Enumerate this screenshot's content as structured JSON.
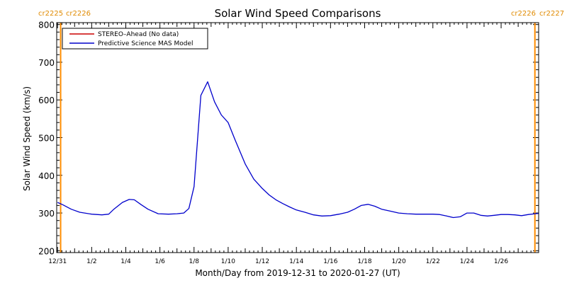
{
  "chart_data": {
    "type": "line",
    "title": "Solar Wind Speed Comparisons",
    "xlabel": "Month/Day from 2019-12-31 to 2020-01-27 (UT)",
    "ylabel": "Solar Wind Speed (km/s)",
    "xlim": [
      -0.05,
      28.2
    ],
    "ylim": [
      195,
      805
    ],
    "y_ticks": [
      200,
      300,
      400,
      500,
      600,
      700,
      800
    ],
    "x_ticks": [
      {
        "x": 0,
        "label": "12/31"
      },
      {
        "x": 2,
        "label": "1/2"
      },
      {
        "x": 4,
        "label": "1/4"
      },
      {
        "x": 6,
        "label": "1/6"
      },
      {
        "x": 8,
        "label": "1/8"
      },
      {
        "x": 10,
        "label": "1/10"
      },
      {
        "x": 12,
        "label": "1/12"
      },
      {
        "x": 14,
        "label": "1/14"
      },
      {
        "x": 16,
        "label": "1/16"
      },
      {
        "x": 18,
        "label": "1/18"
      },
      {
        "x": 20,
        "label": "1/20"
      },
      {
        "x": 22,
        "label": "1/22"
      },
      {
        "x": 24,
        "label": "1/24"
      },
      {
        "x": 26,
        "label": "1/26"
      }
    ],
    "x_unit": "days from 2019-12-31",
    "legend": {
      "position": "top-left",
      "entries": [
        {
          "name": "STEREO–Ahead (No data)",
          "color": "#cc0000"
        },
        {
          "name": "Predictive Science MAS Model",
          "color": "#0000cc"
        }
      ]
    },
    "carrington_markers": [
      {
        "x": 0.18,
        "left_label": "cr2225",
        "right_label": "cr2226",
        "color": "#ff8c00"
      },
      {
        "x": 27.98,
        "left_label": "cr2226",
        "right_label": "cr2227",
        "color": "#ff8c00"
      }
    ],
    "series": [
      {
        "name": "Predictive Science MAS Model",
        "color": "#0000cc",
        "x": [
          0.0,
          0.3,
          0.8,
          1.3,
          2.0,
          2.6,
          3.0,
          3.3,
          3.8,
          4.2,
          4.5,
          4.9,
          5.3,
          5.9,
          6.5,
          7.0,
          7.4,
          7.7,
          8.0,
          8.4,
          8.8,
          9.2,
          9.6,
          10.0,
          10.4,
          11.0,
          11.5,
          12.0,
          12.4,
          12.8,
          13.2,
          13.6,
          14.0,
          14.5,
          15.0,
          15.5,
          16.0,
          16.5,
          17.0,
          17.4,
          17.8,
          18.2,
          18.6,
          19.0,
          19.5,
          20.0,
          20.5,
          21.0,
          21.5,
          22.0,
          22.4,
          22.8,
          23.2,
          23.6,
          24.0,
          24.4,
          24.8,
          25.2,
          25.6,
          26.0,
          26.4,
          26.8,
          27.2,
          27.6,
          28.0,
          28.2
        ],
        "y": [
          328,
          322,
          310,
          302,
          297,
          295,
          297,
          310,
          328,
          336,
          335,
          322,
          310,
          298,
          297,
          298,
          300,
          312,
          370,
          612,
          648,
          595,
          560,
          540,
          495,
          430,
          390,
          365,
          348,
          335,
          325,
          316,
          308,
          302,
          295,
          292,
          293,
          297,
          302,
          310,
          320,
          323,
          318,
          310,
          305,
          300,
          298,
          297,
          297,
          297,
          296,
          292,
          288,
          290,
          300,
          300,
          294,
          292,
          294,
          296,
          296,
          295,
          293,
          296,
          298,
          299
        ]
      }
    ]
  }
}
